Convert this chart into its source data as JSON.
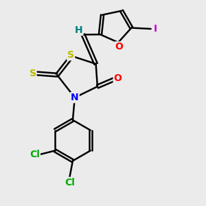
{
  "background_color": "#ebebeb",
  "bond_color": "#000000",
  "atom_colors": {
    "S": "#b8b800",
    "N": "#0000ff",
    "O": "#ff0000",
    "Cl": "#00aa00",
    "I": "#cc00cc",
    "H_label": "#008080",
    "C": "#000000"
  },
  "bond_width": 1.8,
  "figsize": [
    3.0,
    3.0
  ],
  "dpi": 100,
  "xlim": [
    0,
    10
  ],
  "ylim": [
    0,
    10
  ]
}
